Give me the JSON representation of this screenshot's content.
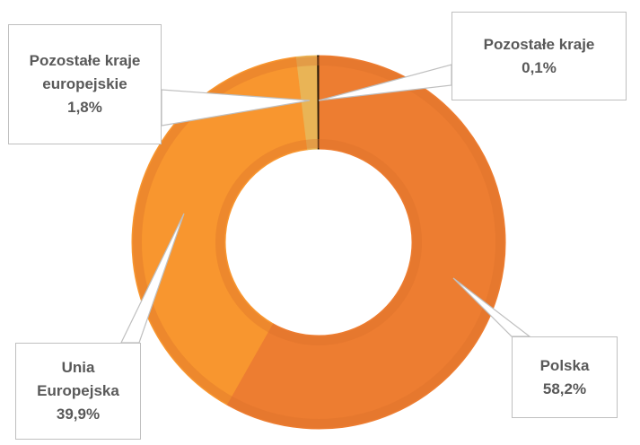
{
  "chart_data": {
    "type": "donut",
    "categories": [
      "Polska",
      "Unia Europejska",
      "Pozostałe kraje europejskie",
      "Pozostałe kraje"
    ],
    "values": [
      58.2,
      39.9,
      1.8,
      0.1
    ],
    "value_labels": [
      "58,2%",
      "39,9%",
      "1,8%",
      "0,1%"
    ],
    "colors": [
      "#ED7D31",
      "#F8962F",
      "#E9B456",
      "#2b1d0a"
    ]
  }
}
